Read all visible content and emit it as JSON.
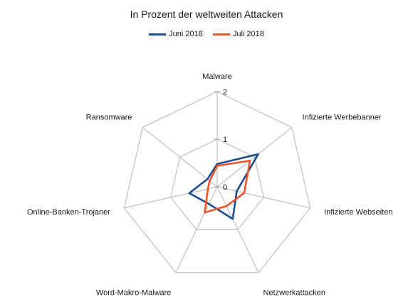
{
  "chart_data": {
    "type": "radar",
    "title": "In Prozent der weltweiten Attacken",
    "categories": [
      "Malware",
      "Infizierte Werbebanner",
      "Infizierte Webseiten",
      "Netzwerkattacken",
      "Word-Makro-Malware",
      "Online-Banken-Trojaner",
      "Ransomware"
    ],
    "series": [
      {
        "name": "Juni 2018",
        "values": [
          0.48,
          1.1,
          0.42,
          0.75,
          0.4,
          0.6,
          0.26
        ],
        "color": "#1f4e8c"
      },
      {
        "name": "Juli 2018",
        "values": [
          0.44,
          0.88,
          0.58,
          0.45,
          0.6,
          0.2,
          0.2
        ],
        "color": "#f0522a"
      }
    ],
    "rlim": [
      0,
      2
    ],
    "ticks": [
      "0",
      "1",
      "2"
    ],
    "grid": true,
    "legend_position": "top"
  }
}
